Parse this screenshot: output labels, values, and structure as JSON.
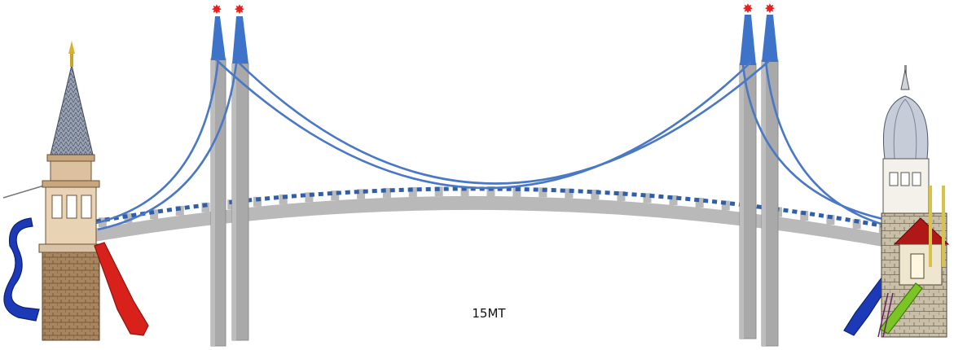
{
  "span_label": "15MT",
  "colors": {
    "cable": "#4a78c4",
    "deck": "#b9b9b9",
    "tower": "#a9a9a9",
    "tower_cap": "#3d74c9",
    "beacon": "#e8211e",
    "slide_blue": "#1c3ab8",
    "slide_red": "#d8211b",
    "slide_green": "#7cc426",
    "brick": "#8a6a4a",
    "roof_red": "#b01818"
  },
  "icons": [
    "castle-tower-left",
    "castle-tower-right",
    "pylon",
    "suspension-cable",
    "slide",
    "beacon-star"
  ]
}
